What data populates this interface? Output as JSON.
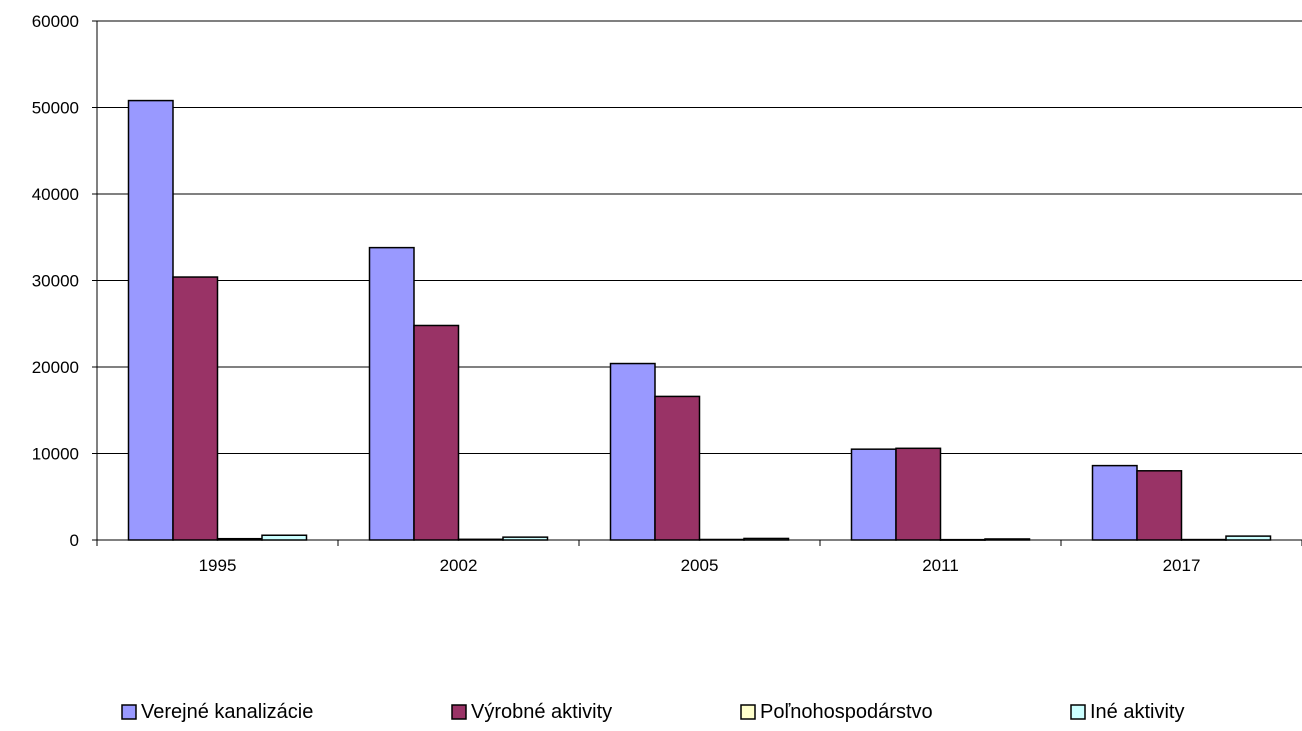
{
  "chart_data": {
    "type": "bar",
    "title": "",
    "xlabel": "",
    "ylabel": "",
    "categories": [
      "1995",
      "2002",
      "2005",
      "2011",
      "2017"
    ],
    "ylim": [
      0,
      60000
    ],
    "yticks": [
      0,
      10000,
      20000,
      30000,
      40000,
      50000,
      60000
    ],
    "ytick_labels": [
      "0",
      "10000",
      "20000",
      "30000",
      "40000",
      "50000",
      "60000"
    ],
    "grid": true,
    "legend_position": "bottom",
    "series": [
      {
        "name": "Verejné kanalizácie",
        "color": "#9999ff",
        "values": [
          50800,
          33800,
          20400,
          10500,
          8600
        ]
      },
      {
        "name": "Výrobné aktivity",
        "color": "#993366",
        "values": [
          30400,
          24800,
          16600,
          10600,
          8000
        ]
      },
      {
        "name": "Poľnohospodárstvo",
        "color": "#ffffcc",
        "values": [
          150,
          80,
          60,
          40,
          50
        ]
      },
      {
        "name": "Iné aktivity",
        "color": "#ccffff",
        "values": [
          550,
          330,
          180,
          120,
          450
        ]
      }
    ]
  }
}
